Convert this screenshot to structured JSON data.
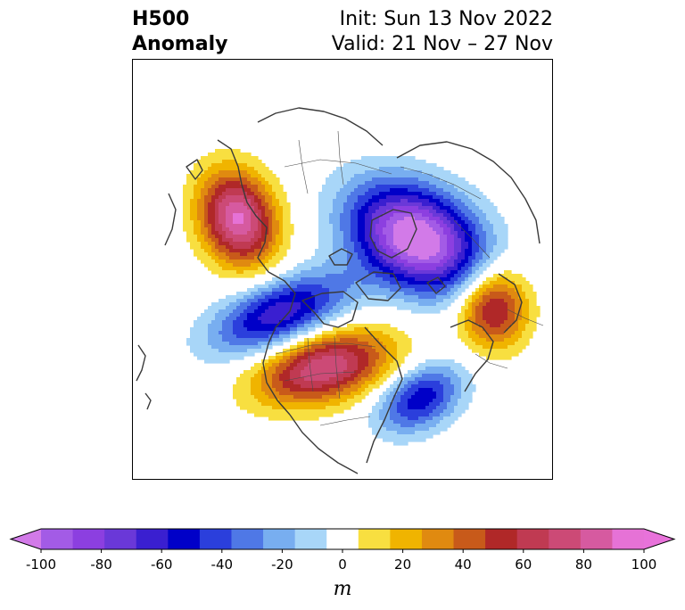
{
  "header": {
    "title_line1": "H500",
    "title_line2": "Anomaly",
    "init_text": "Init: Sun 13 Nov 2022",
    "valid_text": "Valid: 21 Nov – 27 Nov"
  },
  "colorbar": {
    "unit": "m",
    "extend": "both",
    "levels": [
      -100,
      -90,
      -80,
      -70,
      -60,
      -50,
      -40,
      -30,
      -20,
      -10,
      10,
      20,
      30,
      40,
      50,
      60,
      70,
      80,
      90,
      100
    ],
    "colors": [
      "#a35be6",
      "#8c3fe0",
      "#6a38d8",
      "#3a1fd0",
      "#0000c8",
      "#2b3fdc",
      "#4f78e6",
      "#78aef0",
      "#a8d6f8",
      "#ffffff",
      "#f8df40",
      "#f0b400",
      "#e08a10",
      "#c85a1a",
      "#b02828",
      "#c03a52",
      "#cc4a76",
      "#d65aa0",
      "#e672d6"
    ],
    "under_color": "#d27ae8",
    "over_color": "#e872da",
    "tick_labels": [
      "-100",
      "-80",
      "-60",
      "-40",
      "-20",
      "0",
      "20",
      "40",
      "60",
      "80",
      "100"
    ],
    "tick_values": [
      -100,
      -80,
      -60,
      -40,
      -20,
      0,
      20,
      40,
      60,
      80,
      100
    ]
  },
  "map": {
    "projection": "north-polar-stereographic",
    "features": [
      {
        "name": "alaska-ridge",
        "sign": "positive",
        "peak": 80,
        "region": "Alaska / Bering"
      },
      {
        "name": "siberia-trough",
        "sign": "negative",
        "peak": -100,
        "region": "Siberia / Arctic"
      },
      {
        "name": "canada-ridge",
        "sign": "positive",
        "peak": 70,
        "region": "Central Canada"
      },
      {
        "name": "pacific-trough",
        "sign": "negative",
        "peak": -60,
        "region": "North Pacific"
      },
      {
        "name": "atlantic-trough",
        "sign": "negative",
        "peak": -50,
        "region": "North Atlantic"
      },
      {
        "name": "europe-ridge",
        "sign": "positive",
        "peak": 60,
        "region": "Eastern Europe"
      }
    ]
  }
}
